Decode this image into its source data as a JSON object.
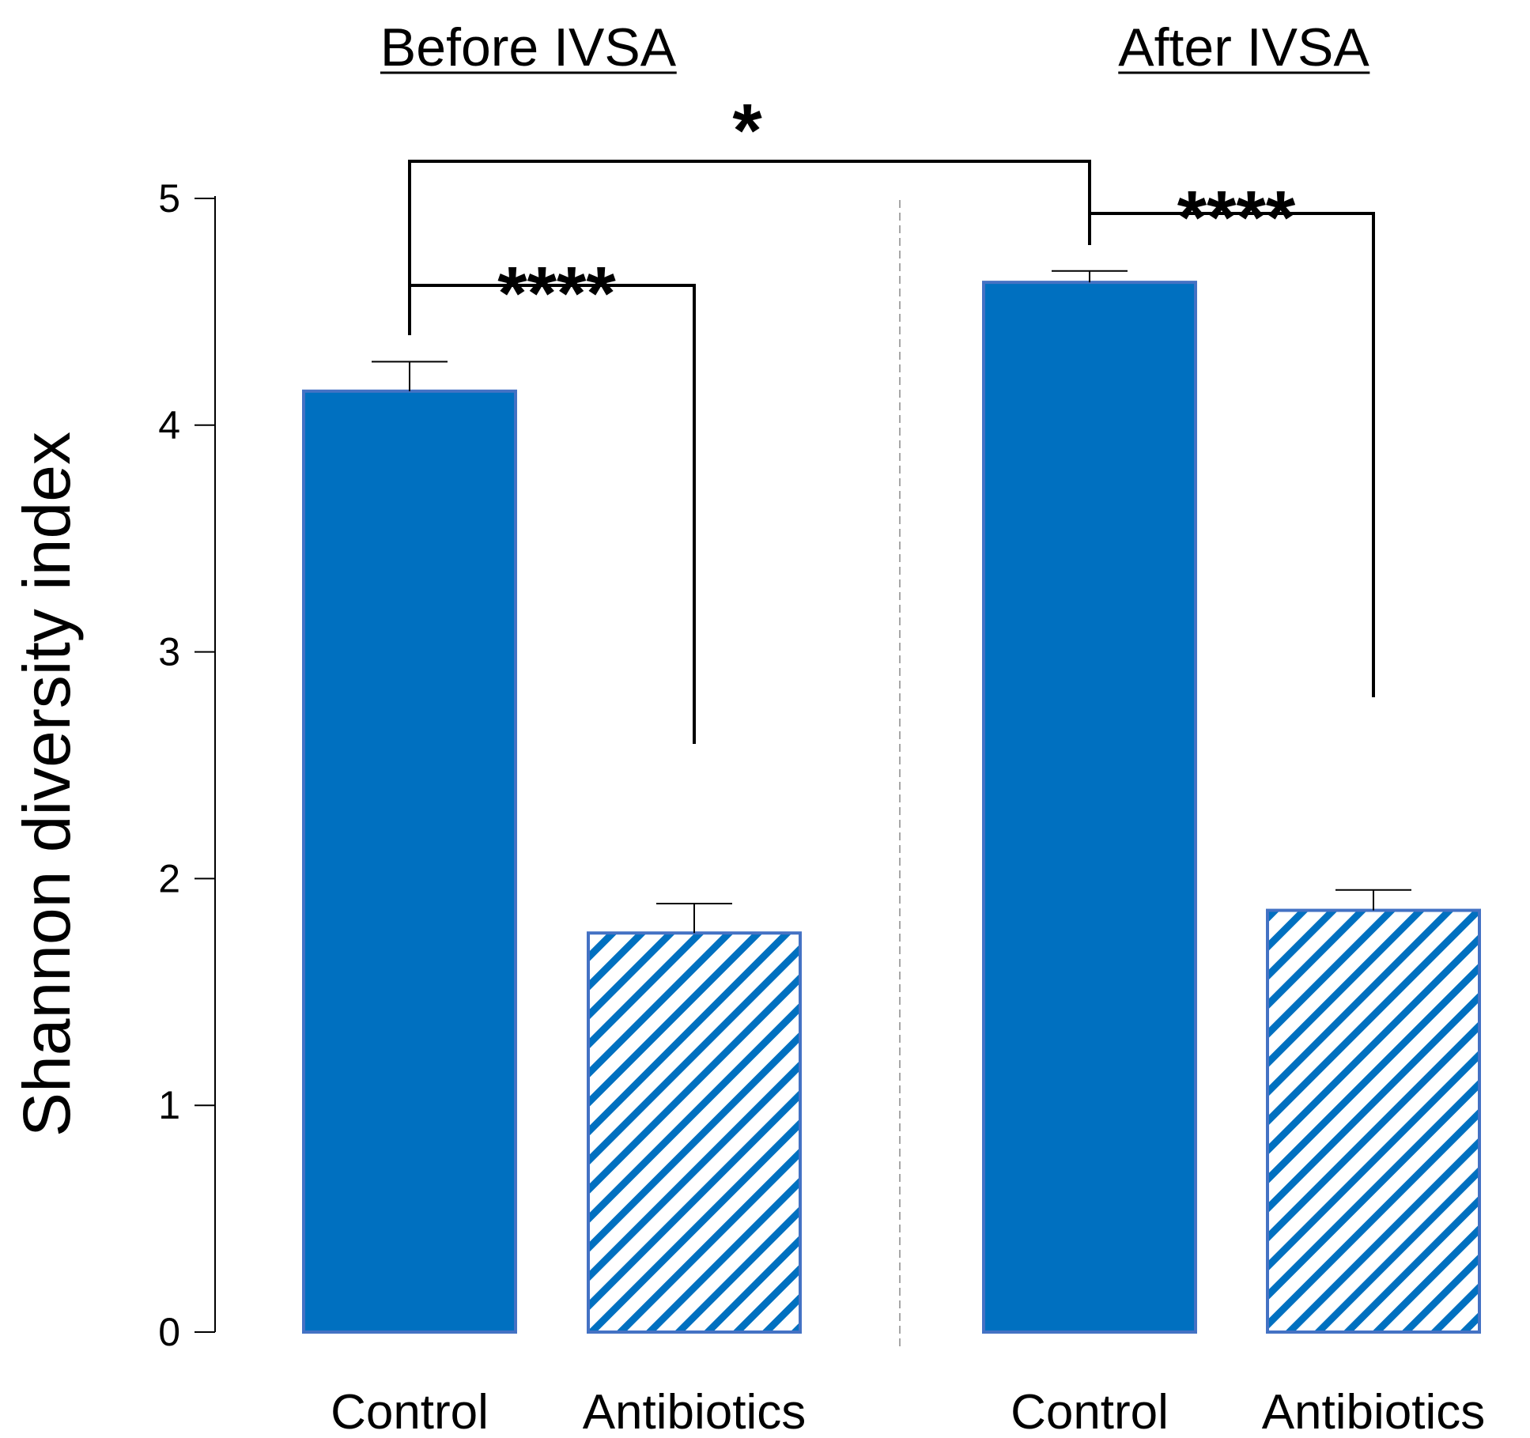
{
  "chart_data": {
    "type": "bar",
    "ylabel": "Shannon diversity index",
    "ylim": [
      0,
      5
    ],
    "yticks": [
      0,
      1,
      2,
      3,
      4,
      5
    ],
    "groups": [
      {
        "title": "Before IVSA",
        "bars": [
          {
            "category": "Control",
            "value": 4.15,
            "error": 0.13,
            "pattern": "solid"
          },
          {
            "category": "Antibiotics",
            "value": 1.76,
            "error": 0.13,
            "pattern": "hatched"
          }
        ]
      },
      {
        "title": "After IVSA",
        "bars": [
          {
            "category": "Control",
            "value": 4.63,
            "error": 0.05,
            "pattern": "solid"
          },
          {
            "category": "Antibiotics",
            "value": 1.86,
            "error": 0.09,
            "pattern": "hatched"
          }
        ]
      }
    ],
    "significance": [
      {
        "between": "Before IVSA Control vs Before IVSA Antibiotics",
        "label": "****"
      },
      {
        "between": "After IVSA Control vs After IVSA Antibiotics",
        "label": "****"
      },
      {
        "between": "Before IVSA Control vs After IVSA Control",
        "label": "*"
      }
    ]
  },
  "colors": {
    "bar_fill": "#0070C0",
    "bar_border": "#4472C4",
    "hatch_background": "#ffffff",
    "axis": "#000000",
    "divider": "#a6a6a6"
  }
}
